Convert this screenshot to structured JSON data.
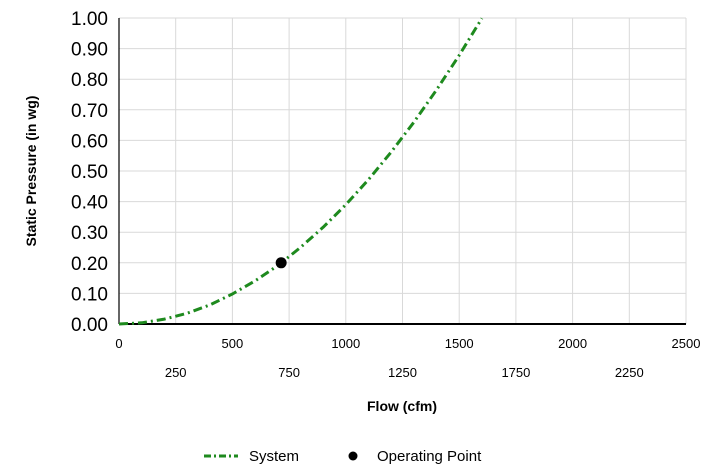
{
  "chart_data": {
    "type": "line",
    "xlabel": "Flow (cfm)",
    "ylabel": "Static Pressure (in wg)",
    "xlim": [
      0,
      2500
    ],
    "ylim": [
      0,
      1.0
    ],
    "x_ticks_upper": [
      "0",
      "500",
      "1000",
      "1500",
      "2000",
      "2500"
    ],
    "x_ticks_lower": [
      "250",
      "750",
      "1250",
      "1750",
      "2250"
    ],
    "y_ticks": [
      "0.00",
      "0.10",
      "0.20",
      "0.30",
      "0.40",
      "0.50",
      "0.60",
      "0.70",
      "0.80",
      "0.90",
      "1.00"
    ],
    "grid": true,
    "legend_position": "bottom",
    "series": [
      {
        "name": "System",
        "style": "dash-dot",
        "color": "#1e8a1e",
        "x": [
          0,
          100,
          200,
          300,
          400,
          500,
          600,
          700,
          800,
          900,
          1000,
          1100,
          1200,
          1300,
          1400,
          1500,
          1600
        ],
        "y": [
          0.0,
          0.004,
          0.016,
          0.035,
          0.062,
          0.098,
          0.141,
          0.191,
          0.25,
          0.316,
          0.39,
          0.472,
          0.562,
          0.659,
          0.765,
          0.878,
          0.999
        ]
      },
      {
        "name": "Operating Point",
        "style": "marker",
        "color": "#000000",
        "x": [
          715
        ],
        "y": [
          0.2
        ]
      }
    ]
  }
}
